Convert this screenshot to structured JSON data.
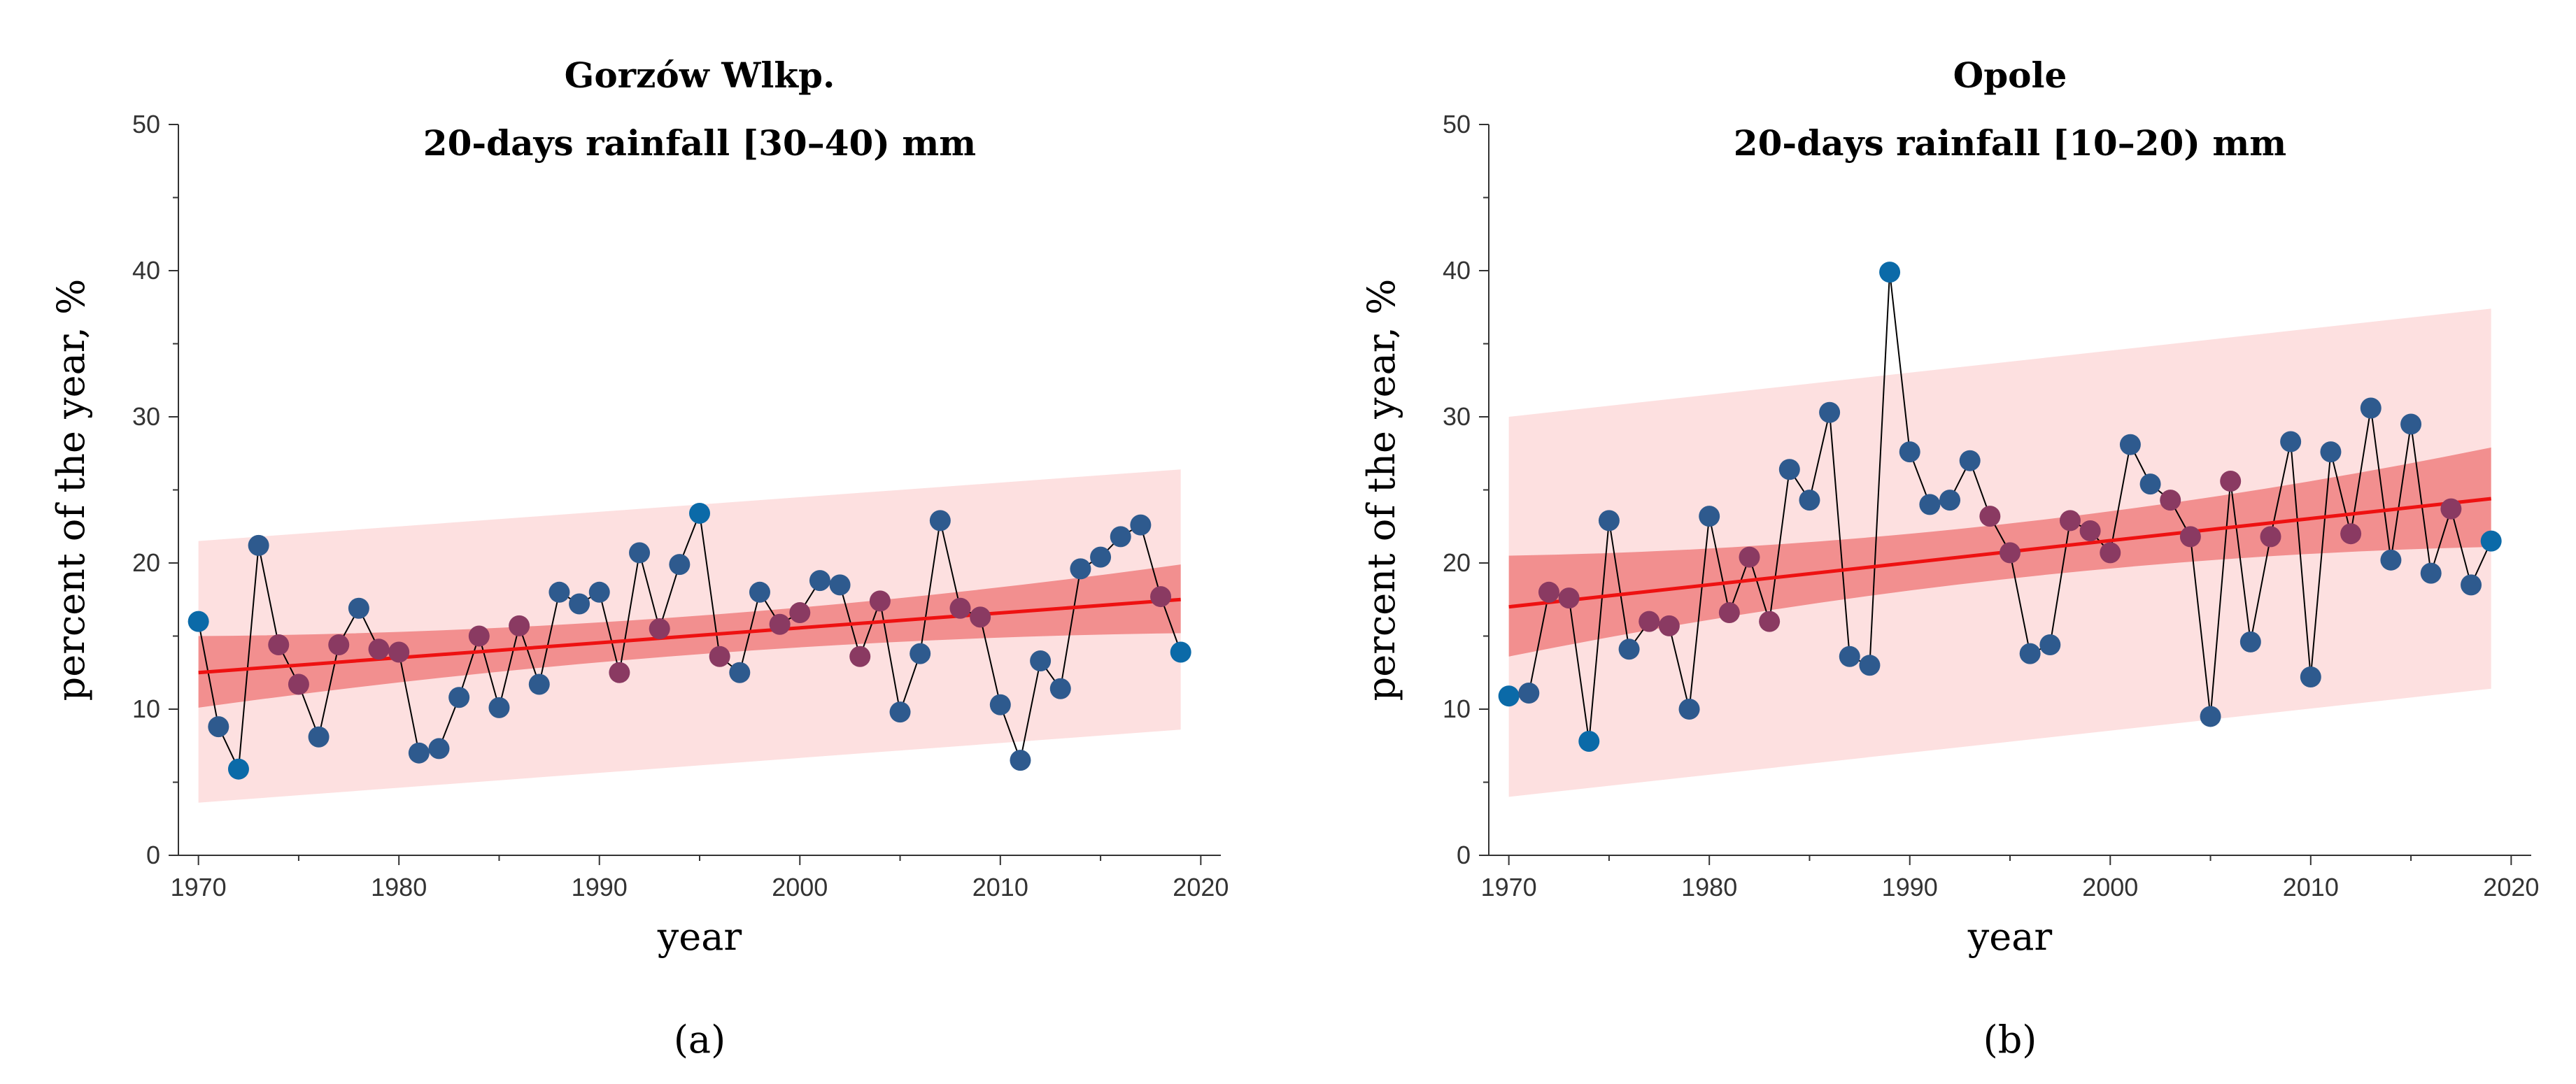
{
  "colors": {
    "trend": "#ee1111",
    "confidence_band": "#f08080",
    "prediction_band": "#fde0e0",
    "point": "#2e5a8e",
    "point_inside_band": "#8a3a62",
    "point_extreme": "#0b6aa8",
    "connector": "#000000",
    "axis": "#333333"
  },
  "chart_data": [
    {
      "type": "scatter",
      "panel_label": "(a)",
      "title": "Gorzów Wlkp.",
      "subtitle": "20-days rainfall [30–40) mm",
      "xlabel": "year",
      "ylabel": "percent of the year, %",
      "xlim": [
        1969,
        2021
      ],
      "ylim": [
        0,
        50
      ],
      "xticks": [
        1970,
        1980,
        1990,
        2000,
        2010,
        2020
      ],
      "yticks": [
        0,
        10,
        20,
        30,
        40,
        50
      ],
      "x": [
        1970,
        1971,
        1972,
        1973,
        1974,
        1975,
        1976,
        1977,
        1978,
        1979,
        1980,
        1981,
        1982,
        1983,
        1984,
        1985,
        1986,
        1987,
        1988,
        1989,
        1990,
        1991,
        1992,
        1993,
        1994,
        1995,
        1996,
        1997,
        1998,
        1999,
        2000,
        2001,
        2002,
        2003,
        2004,
        2005,
        2006,
        2007,
        2008,
        2009,
        2010,
        2011,
        2012,
        2013,
        2014,
        2015,
        2016,
        2017,
        2018,
        2019
      ],
      "y": [
        16.0,
        8.8,
        5.9,
        21.2,
        14.4,
        11.7,
        8.1,
        14.4,
        16.9,
        14.1,
        13.9,
        7.0,
        7.3,
        10.8,
        15.0,
        10.1,
        15.7,
        11.7,
        18.0,
        17.2,
        18.0,
        12.5,
        20.7,
        15.5,
        19.9,
        23.4,
        13.6,
        12.5,
        18.0,
        15.8,
        16.6,
        18.8,
        18.5,
        13.6,
        17.4,
        9.8,
        13.8,
        22.9,
        16.9,
        16.3,
        10.3,
        6.5,
        13.3,
        11.4,
        19.6,
        20.4,
        21.8,
        22.6,
        17.7,
        13.9
      ],
      "trend": {
        "x": [
          1970,
          2019
        ],
        "y": [
          12.5,
          17.5
        ]
      },
      "confidence_band": {
        "x": [
          1970,
          2019
        ],
        "lower": [
          10.1,
          15.2
        ],
        "upper": [
          15.0,
          19.9
        ]
      },
      "prediction_band": {
        "x": [
          1970,
          2019
        ],
        "lower": [
          3.6,
          8.6
        ],
        "upper": [
          21.5,
          26.4
        ]
      }
    },
    {
      "type": "scatter",
      "panel_label": "(b)",
      "title": "Opole",
      "subtitle": "20-days rainfall [10–20) mm",
      "xlabel": "year",
      "ylabel": "percent of the year, %",
      "xlim": [
        1969,
        2021
      ],
      "ylim": [
        0,
        50
      ],
      "xticks": [
        1970,
        1980,
        1990,
        2000,
        2010,
        2020
      ],
      "yticks": [
        0,
        10,
        20,
        30,
        40,
        50
      ],
      "x": [
        1970,
        1971,
        1972,
        1973,
        1974,
        1975,
        1976,
        1977,
        1978,
        1979,
        1980,
        1981,
        1982,
        1983,
        1984,
        1985,
        1986,
        1987,
        1988,
        1989,
        1990,
        1991,
        1992,
        1993,
        1994,
        1995,
        1996,
        1997,
        1998,
        1999,
        2000,
        2001,
        2002,
        2003,
        2004,
        2005,
        2006,
        2007,
        2008,
        2009,
        2010,
        2011,
        2012,
        2013,
        2014,
        2015,
        2016,
        2017,
        2018,
        2019
      ],
      "y": [
        10.9,
        11.1,
        18.0,
        17.6,
        7.8,
        22.9,
        14.1,
        16.0,
        15.7,
        10.0,
        23.2,
        16.6,
        20.4,
        16.0,
        26.4,
        24.3,
        30.3,
        13.6,
        13.0,
        39.9,
        27.6,
        24.0,
        24.3,
        27.0,
        23.2,
        20.7,
        13.8,
        14.4,
        22.9,
        22.2,
        20.7,
        28.1,
        25.4,
        24.3,
        21.8,
        9.5,
        25.6,
        14.6,
        21.8,
        28.3,
        12.2,
        27.6,
        22.0,
        30.6,
        20.2,
        29.5,
        19.3,
        23.7,
        18.5,
        21.5
      ],
      "trend": {
        "x": [
          1970,
          2019
        ],
        "y": [
          17.0,
          24.4
        ]
      },
      "confidence_band": {
        "x": [
          1970,
          2019
        ],
        "lower": [
          13.6,
          21.1
        ],
        "upper": [
          20.5,
          27.9
        ]
      },
      "prediction_band": {
        "x": [
          1970,
          2019
        ],
        "lower": [
          4.0,
          11.4
        ],
        "upper": [
          30.0,
          37.4
        ]
      }
    }
  ]
}
